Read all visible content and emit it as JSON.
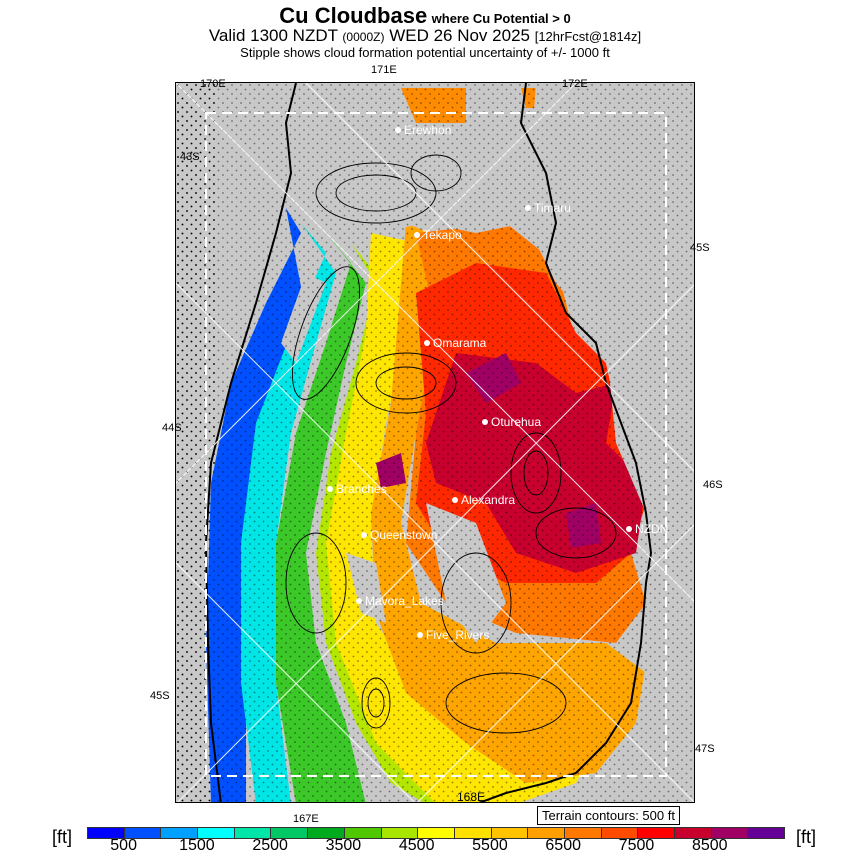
{
  "header": {
    "title": "Cu Cloudbase",
    "title_suffix": "where Cu Potential > 0",
    "valid_prefix": "Valid 1300 NZDT",
    "utc": "(0000Z)",
    "date": "WED 26 Nov 2025",
    "forecast": "[12hrFcst@1814z]",
    "subtitle": "Stipple shows cloud formation potential uncertainty of +/- 1000 ft"
  },
  "axis_labels": {
    "top": [
      "170E",
      "171E",
      "172E"
    ],
    "bottom": [
      "167E",
      "168E"
    ],
    "left": [
      "43S",
      "44S",
      "45S"
    ],
    "right": [
      "45S",
      "46S",
      "47S"
    ]
  },
  "towns": [
    "Erewhon",
    "Timaru",
    "Tekapo",
    "Omarama",
    "Oturehua",
    "Branches",
    "Alexandra",
    "Queenstown",
    "NZDN",
    "Mavora_Lakes",
    "Five_Rivers"
  ],
  "terrain_note": "Terrain contours: 500 ft",
  "legend": {
    "unit": "[ft]",
    "labels": [
      "500",
      "1500",
      "2500",
      "3500",
      "4500",
      "5500",
      "6500",
      "7500",
      "8500"
    ],
    "colors": [
      "#0000ff",
      "#0050ff",
      "#00a0ff",
      "#00ffff",
      "#00e6a8",
      "#00c864",
      "#00aa1e",
      "#50c800",
      "#a8e600",
      "#ffff00",
      "#ffe100",
      "#ffc300",
      "#ffa000",
      "#ff7800",
      "#ff4b00",
      "#ff0000",
      "#c8002d",
      "#a00064",
      "#640096"
    ]
  }
}
